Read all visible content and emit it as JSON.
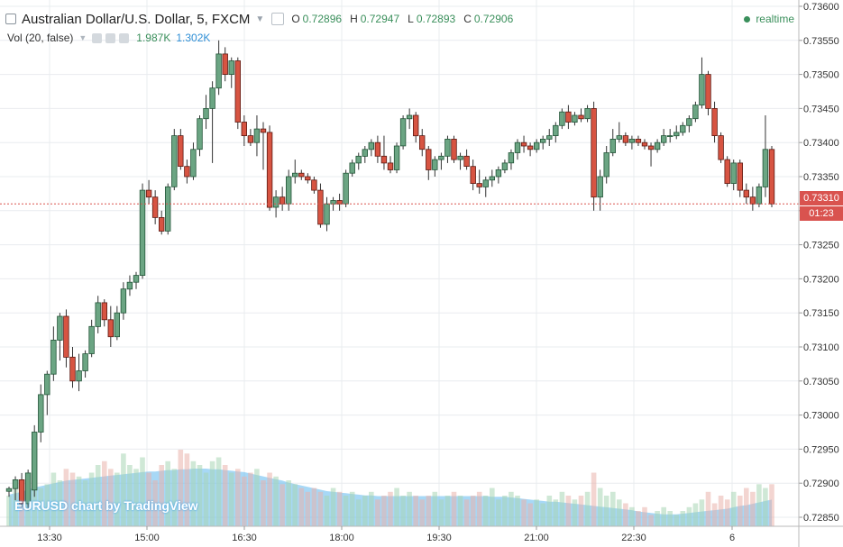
{
  "header": {
    "title": "Australian Dollar/U.S. Dollar, 5, FXCM",
    "ohlc": {
      "o_label": "O",
      "o": "0.72896",
      "h_label": "H",
      "h": "0.72947",
      "l_label": "L",
      "l": "0.72893",
      "c_label": "C",
      "c": "0.72906"
    },
    "realtime": "realtime"
  },
  "volume_legend": {
    "name": "Vol (20, false)",
    "value1": "1.987K",
    "value2": "1.302K"
  },
  "watermark": "EURUSD chart by TradingView",
  "last_price": {
    "price": "0.73310",
    "countdown": "01:23"
  },
  "colors": {
    "up": "#3a8f5b",
    "up_fill": "#6ba583",
    "down": "#c0392b",
    "down_fill": "#d75442",
    "price_line": "#d9534f",
    "vol_area": "#5fb8ef",
    "grid": "#e9ecef"
  },
  "chart_data": {
    "type": "candlestick",
    "title": "Australian Dollar/U.S. Dollar, 5, FXCM",
    "ylim": [
      0.7282,
      0.736
    ],
    "y_ticks": [
      "0.73600",
      "0.73550",
      "0.73500",
      "0.73450",
      "0.73400",
      "0.73350",
      "0.73300",
      "0.73250",
      "0.73200",
      "0.73150",
      "0.73100",
      "0.73050",
      "0.73000",
      "0.72950",
      "0.72900",
      "0.72850"
    ],
    "x_ticks": [
      "13:30",
      "15:00",
      "16:30",
      "18:00",
      "19:30",
      "21:00",
      "22:30",
      "6"
    ],
    "grid": true,
    "candles": [
      [
        0.72888,
        0.72895,
        0.7288,
        0.72892
      ],
      [
        0.72892,
        0.7291,
        0.72875,
        0.72905
      ],
      [
        0.72905,
        0.72915,
        0.72865,
        0.7287
      ],
      [
        0.7287,
        0.7292,
        0.7286,
        0.72915
      ],
      [
        0.7289,
        0.72985,
        0.7288,
        0.72975
      ],
      [
        0.72975,
        0.73045,
        0.7296,
        0.7303
      ],
      [
        0.7303,
        0.73065,
        0.73,
        0.7306
      ],
      [
        0.7306,
        0.7313,
        0.7305,
        0.7311
      ],
      [
        0.7311,
        0.7315,
        0.7308,
        0.73145
      ],
      [
        0.73145,
        0.73155,
        0.7307,
        0.73085
      ],
      [
        0.73085,
        0.731,
        0.7304,
        0.7305
      ],
      [
        0.7305,
        0.7309,
        0.73035,
        0.73065
      ],
      [
        0.73065,
        0.73095,
        0.73055,
        0.7309
      ],
      [
        0.7309,
        0.7314,
        0.73085,
        0.7313
      ],
      [
        0.7313,
        0.73175,
        0.7312,
        0.73165
      ],
      [
        0.73165,
        0.7317,
        0.7313,
        0.7314
      ],
      [
        0.7314,
        0.7316,
        0.731,
        0.73115
      ],
      [
        0.73115,
        0.7316,
        0.7311,
        0.7315
      ],
      [
        0.7315,
        0.73195,
        0.7314,
        0.73185
      ],
      [
        0.73185,
        0.73205,
        0.73175,
        0.73195
      ],
      [
        0.73195,
        0.7321,
        0.73185,
        0.73205
      ],
      [
        0.73205,
        0.7334,
        0.732,
        0.7333
      ],
      [
        0.7333,
        0.73345,
        0.7331,
        0.7332
      ],
      [
        0.7332,
        0.7333,
        0.7328,
        0.7329
      ],
      [
        0.7329,
        0.733,
        0.73265,
        0.7327
      ],
      [
        0.7327,
        0.7334,
        0.73265,
        0.73335
      ],
      [
        0.73335,
        0.7342,
        0.7333,
        0.7341
      ],
      [
        0.7341,
        0.7342,
        0.7336,
        0.73365
      ],
      [
        0.73365,
        0.73375,
        0.7334,
        0.7335
      ],
      [
        0.7335,
        0.734,
        0.73345,
        0.7339
      ],
      [
        0.7339,
        0.7344,
        0.7338,
        0.73435
      ],
      [
        0.73435,
        0.7347,
        0.7342,
        0.7345
      ],
      [
        0.7345,
        0.7349,
        0.7337,
        0.7348
      ],
      [
        0.7348,
        0.7355,
        0.7347,
        0.7353
      ],
      [
        0.7353,
        0.7354,
        0.7349,
        0.735
      ],
      [
        0.735,
        0.73525,
        0.7348,
        0.7352
      ],
      [
        0.7352,
        0.73525,
        0.7342,
        0.7343
      ],
      [
        0.7343,
        0.7344,
        0.73395,
        0.7341
      ],
      [
        0.7341,
        0.7342,
        0.73395,
        0.734
      ],
      [
        0.734,
        0.7344,
        0.7338,
        0.7342
      ],
      [
        0.7342,
        0.7343,
        0.7336,
        0.73415
      ],
      [
        0.73415,
        0.73425,
        0.733,
        0.73305
      ],
      [
        0.73305,
        0.7333,
        0.7329,
        0.7332
      ],
      [
        0.7332,
        0.73335,
        0.733,
        0.7331
      ],
      [
        0.7331,
        0.7336,
        0.733,
        0.7335
      ],
      [
        0.7335,
        0.73375,
        0.7334,
        0.73355
      ],
      [
        0.73355,
        0.7336,
        0.73345,
        0.7335
      ],
      [
        0.7335,
        0.73355,
        0.7334,
        0.73345
      ],
      [
        0.73345,
        0.7335,
        0.73325,
        0.7333
      ],
      [
        0.7333,
        0.7334,
        0.73275,
        0.7328
      ],
      [
        0.7328,
        0.7332,
        0.7327,
        0.7331
      ],
      [
        0.7331,
        0.7332,
        0.733,
        0.73315
      ],
      [
        0.73315,
        0.73325,
        0.733,
        0.7331
      ],
      [
        0.7331,
        0.7336,
        0.73305,
        0.73355
      ],
      [
        0.73355,
        0.73375,
        0.7335,
        0.7337
      ],
      [
        0.7337,
        0.73385,
        0.7336,
        0.7338
      ],
      [
        0.7338,
        0.73395,
        0.7337,
        0.7339
      ],
      [
        0.7339,
        0.73405,
        0.7338,
        0.734
      ],
      [
        0.734,
        0.7341,
        0.7337,
        0.7338
      ],
      [
        0.7338,
        0.7341,
        0.7336,
        0.7337
      ],
      [
        0.7337,
        0.7338,
        0.73355,
        0.7336
      ],
      [
        0.7336,
        0.734,
        0.73355,
        0.73395
      ],
      [
        0.73395,
        0.7344,
        0.7339,
        0.73435
      ],
      [
        0.73435,
        0.7345,
        0.7342,
        0.7344
      ],
      [
        0.7344,
        0.73445,
        0.734,
        0.7341
      ],
      [
        0.7341,
        0.7342,
        0.7338,
        0.7339
      ],
      [
        0.7339,
        0.73395,
        0.73345,
        0.7336
      ],
      [
        0.7336,
        0.7338,
        0.7335,
        0.73375
      ],
      [
        0.73375,
        0.73385,
        0.7336,
        0.7338
      ],
      [
        0.7338,
        0.7341,
        0.7337,
        0.73405
      ],
      [
        0.73405,
        0.7341,
        0.7337,
        0.73375
      ],
      [
        0.73375,
        0.73385,
        0.7336,
        0.7338
      ],
      [
        0.7338,
        0.7339,
        0.7336,
        0.73365
      ],
      [
        0.73365,
        0.73375,
        0.7333,
        0.7334
      ],
      [
        0.7334,
        0.7336,
        0.73325,
        0.73335
      ],
      [
        0.73335,
        0.7335,
        0.7332,
        0.73345
      ],
      [
        0.73345,
        0.7336,
        0.73335,
        0.7335
      ],
      [
        0.7335,
        0.73365,
        0.7334,
        0.7336
      ],
      [
        0.7336,
        0.73375,
        0.73355,
        0.7337
      ],
      [
        0.7337,
        0.7339,
        0.7336,
        0.73385
      ],
      [
        0.73385,
        0.73405,
        0.73375,
        0.734
      ],
      [
        0.734,
        0.7341,
        0.73385,
        0.73395
      ],
      [
        0.73395,
        0.734,
        0.7338,
        0.7339
      ],
      [
        0.7339,
        0.73405,
        0.73385,
        0.734
      ],
      [
        0.734,
        0.7341,
        0.7339,
        0.73405
      ],
      [
        0.73405,
        0.7342,
        0.73395,
        0.7341
      ],
      [
        0.7341,
        0.7343,
        0.734,
        0.73425
      ],
      [
        0.73425,
        0.7345,
        0.7342,
        0.73445
      ],
      [
        0.73445,
        0.73455,
        0.7342,
        0.7343
      ],
      [
        0.7343,
        0.73445,
        0.73425,
        0.7344
      ],
      [
        0.7344,
        0.7345,
        0.7343,
        0.73435
      ],
      [
        0.73435,
        0.73455,
        0.7343,
        0.7345
      ],
      [
        0.7345,
        0.7346,
        0.733,
        0.7332
      ],
      [
        0.7332,
        0.7336,
        0.733,
        0.7335
      ],
      [
        0.7335,
        0.73395,
        0.7334,
        0.73385
      ],
      [
        0.73385,
        0.7342,
        0.7338,
        0.73405
      ],
      [
        0.73405,
        0.7343,
        0.734,
        0.7341
      ],
      [
        0.7341,
        0.73415,
        0.73395,
        0.734
      ],
      [
        0.734,
        0.7341,
        0.7339,
        0.73405
      ],
      [
        0.73405,
        0.7341,
        0.73395,
        0.734
      ],
      [
        0.734,
        0.73405,
        0.7339,
        0.73395
      ],
      [
        0.73395,
        0.734,
        0.73365,
        0.7339
      ],
      [
        0.7339,
        0.73405,
        0.73385,
        0.734
      ],
      [
        0.734,
        0.7342,
        0.73395,
        0.7341
      ],
      [
        0.7341,
        0.7342,
        0.734,
        0.7341
      ],
      [
        0.7341,
        0.73425,
        0.73405,
        0.73415
      ],
      [
        0.73415,
        0.7343,
        0.7341,
        0.73425
      ],
      [
        0.73425,
        0.7344,
        0.73415,
        0.73435
      ],
      [
        0.73435,
        0.7346,
        0.7343,
        0.73455
      ],
      [
        0.73455,
        0.73525,
        0.7345,
        0.735
      ],
      [
        0.735,
        0.73505,
        0.7344,
        0.7345
      ],
      [
        0.7345,
        0.7346,
        0.734,
        0.7341
      ],
      [
        0.7341,
        0.73415,
        0.7337,
        0.73375
      ],
      [
        0.73375,
        0.7338,
        0.73335,
        0.7334
      ],
      [
        0.7334,
        0.73375,
        0.7333,
        0.7337
      ],
      [
        0.7337,
        0.73375,
        0.7332,
        0.7333
      ],
      [
        0.7333,
        0.7334,
        0.7331,
        0.7332
      ],
      [
        0.7332,
        0.73335,
        0.733,
        0.7331
      ],
      [
        0.7331,
        0.7334,
        0.73305,
        0.73335
      ],
      [
        0.73335,
        0.7344,
        0.7332,
        0.7339
      ],
      [
        0.7339,
        0.73395,
        0.73305,
        0.7331
      ]
    ],
    "volumes": [
      0.4,
      0.55,
      0.3,
      0.6,
      0.65,
      0.5,
      0.55,
      0.7,
      0.6,
      0.75,
      0.7,
      0.65,
      0.6,
      0.7,
      0.8,
      0.85,
      0.75,
      0.7,
      0.95,
      0.8,
      0.75,
      0.9,
      0.7,
      0.6,
      0.8,
      0.85,
      0.75,
      1.0,
      0.95,
      0.85,
      0.8,
      0.7,
      0.85,
      0.9,
      0.8,
      0.7,
      0.75,
      0.65,
      0.7,
      0.75,
      0.6,
      0.7,
      0.65,
      0.55,
      0.6,
      0.55,
      0.5,
      0.45,
      0.5,
      0.45,
      0.4,
      0.5,
      0.45,
      0.4,
      0.45,
      0.35,
      0.4,
      0.45,
      0.35,
      0.4,
      0.45,
      0.5,
      0.4,
      0.45,
      0.4,
      0.35,
      0.4,
      0.45,
      0.35,
      0.4,
      0.45,
      0.4,
      0.35,
      0.4,
      0.45,
      0.4,
      0.5,
      0.35,
      0.4,
      0.45,
      0.4,
      0.35,
      0.3,
      0.35,
      0.3,
      0.4,
      0.35,
      0.45,
      0.4,
      0.35,
      0.4,
      0.45,
      0.7,
      0.5,
      0.4,
      0.45,
      0.35,
      0.3,
      0.25,
      0.2,
      0.25,
      0.15,
      0.2,
      0.25,
      0.2,
      0.15,
      0.2,
      0.25,
      0.3,
      0.35,
      0.45,
      0.3,
      0.4,
      0.35,
      0.45,
      0.4,
      0.5,
      0.45,
      0.55,
      0.5,
      0.55
    ],
    "volume_ma": [
      0.45,
      0.47,
      0.49,
      0.52,
      0.55,
      0.57,
      0.59,
      0.61,
      0.63,
      0.65,
      0.66,
      0.67,
      0.68,
      0.69,
      0.7,
      0.71,
      0.72,
      0.73,
      0.74,
      0.75,
      0.76,
      0.77,
      0.78,
      0.78,
      0.79,
      0.8,
      0.8,
      0.81,
      0.81,
      0.82,
      0.82,
      0.82,
      0.81,
      0.81,
      0.8,
      0.79,
      0.78,
      0.77,
      0.75,
      0.73,
      0.71,
      0.69,
      0.67,
      0.65,
      0.62,
      0.6,
      0.58,
      0.56,
      0.54,
      0.52,
      0.5,
      0.49,
      0.48,
      0.47,
      0.46,
      0.45,
      0.44,
      0.44,
      0.43,
      0.43,
      0.43,
      0.43,
      0.43,
      0.43,
      0.43,
      0.43,
      0.43,
      0.43,
      0.43,
      0.43,
      0.43,
      0.43,
      0.43,
      0.43,
      0.43,
      0.43,
      0.42,
      0.42,
      0.42,
      0.41,
      0.4,
      0.39,
      0.38,
      0.37,
      0.36,
      0.35,
      0.35,
      0.34,
      0.33,
      0.32,
      0.31,
      0.3,
      0.29,
      0.28,
      0.27,
      0.26,
      0.25,
      0.24,
      0.23,
      0.21,
      0.2,
      0.19,
      0.18,
      0.17,
      0.17,
      0.17,
      0.18,
      0.19,
      0.2,
      0.21,
      0.22,
      0.23,
      0.24,
      0.25,
      0.27,
      0.29,
      0.3,
      0.32,
      0.34,
      0.36,
      0.38
    ]
  }
}
